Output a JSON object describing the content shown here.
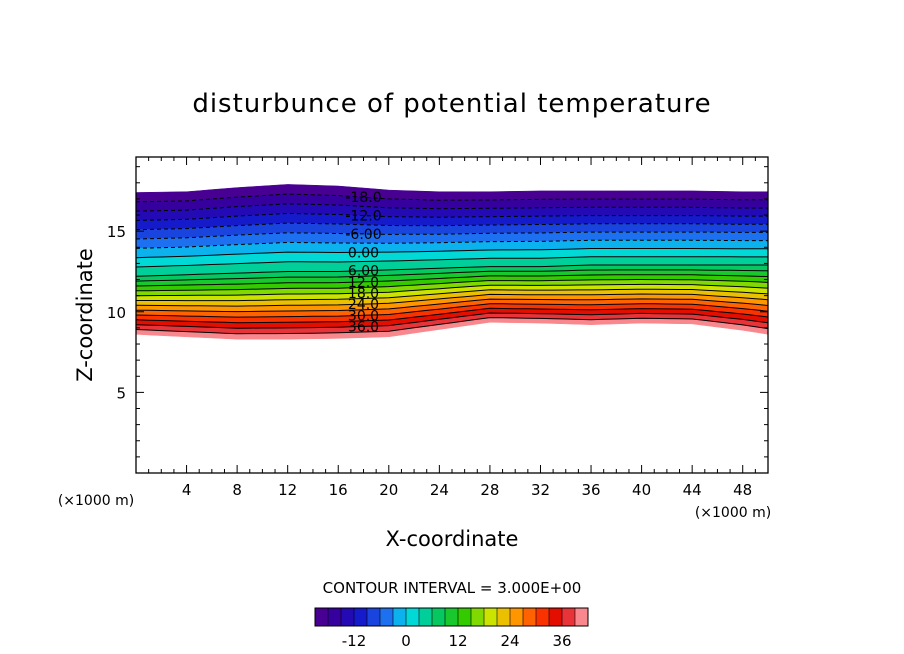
{
  "chart_data": {
    "type": "contour",
    "title": "disturbunce of potential temperature",
    "xlabel": "X-coordinate",
    "ylabel": "Z-coordinate",
    "x_unit": "(×1000 m)",
    "y_unit": "(×1000 m)",
    "xlim": [
      0,
      50
    ],
    "ylim": [
      0,
      19.6
    ],
    "x_ticks": [
      4,
      8,
      12,
      16,
      20,
      24,
      28,
      32,
      36,
      40,
      44,
      48
    ],
    "y_ticks": [
      5,
      10,
      15
    ],
    "contour_interval_text": "CONTOUR INTERVAL = 3.000E+00",
    "contour_interval": 3.0,
    "value_range": [
      -21,
      42
    ],
    "contour_labels": [
      "-18.0",
      "-12.0",
      "-6.00",
      "0.00",
      "6.00",
      "12.0",
      "18.0",
      "24.0",
      "30.0",
      "36.0"
    ],
    "contour_label_values": [
      -18,
      -12,
      -6,
      0,
      6,
      12,
      18,
      24,
      30,
      36
    ],
    "negative_contours_dashed": true,
    "colorbar_ticks": [
      "-12",
      "0",
      "12",
      "24",
      "36"
    ],
    "colorbar_tick_values": [
      -12,
      0,
      12,
      24,
      36
    ],
    "colormap": "rainbow (purple-blue-cyan-green-yellow-orange-red-pink)",
    "field": {
      "x_km": [
        0,
        4,
        8,
        12,
        16,
        20,
        24,
        28,
        32,
        36,
        40,
        44,
        48,
        50
      ],
      "top_z_km": [
        17.4,
        17.45,
        17.7,
        17.9,
        17.8,
        17.55,
        17.45,
        17.45,
        17.5,
        17.5,
        17.5,
        17.5,
        17.45,
        17.45
      ],
      "bottom_z_km": [
        8.6,
        8.45,
        8.3,
        8.3,
        8.35,
        8.45,
        8.9,
        9.35,
        9.3,
        9.2,
        9.3,
        9.25,
        8.85,
        8.6
      ],
      "mid_z_km": [
        12.2,
        12.3,
        12.4,
        12.5,
        12.5,
        12.6,
        12.7,
        12.8,
        12.8,
        12.9,
        12.9,
        12.9,
        12.9,
        12.9
      ]
    }
  }
}
